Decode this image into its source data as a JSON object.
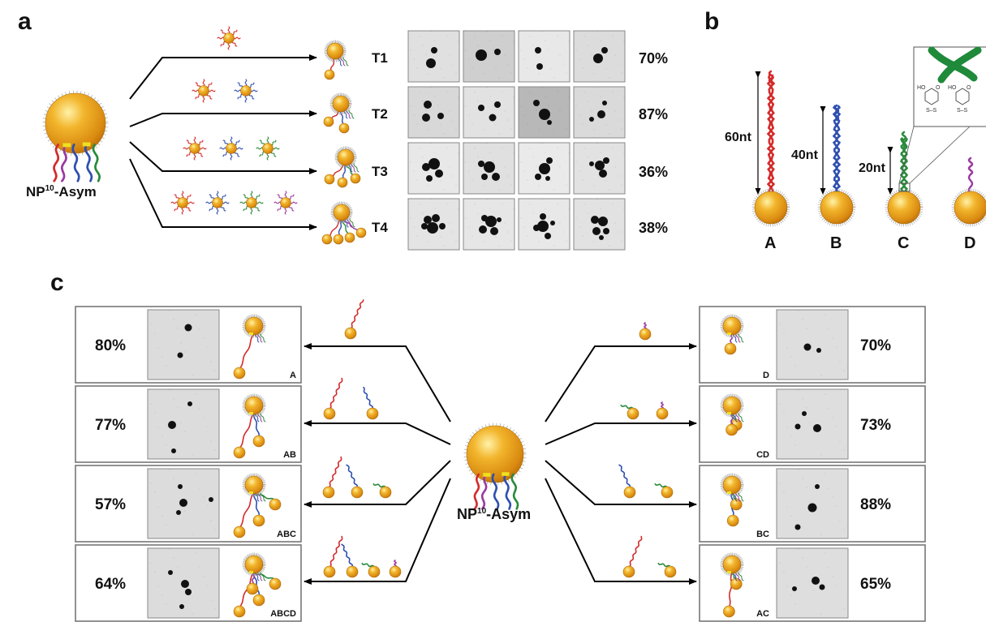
{
  "panel_labels": {
    "a": "a",
    "b": "b",
    "c": "c"
  },
  "panel_a": {
    "np_label": {
      "main": "NP",
      "sup": "10",
      "suffix": "-Asym"
    },
    "rows": [
      {
        "name": "T1",
        "yield": "70%"
      },
      {
        "name": "T2",
        "yield": "87%"
      },
      {
        "name": "T3",
        "yield": "36%"
      },
      {
        "name": "T4",
        "yield": "38%"
      }
    ]
  },
  "panel_b": {
    "particles": [
      {
        "letter": "A",
        "length": "60nt"
      },
      {
        "letter": "B",
        "length": "40nt"
      },
      {
        "letter": "C",
        "length": "20nt"
      },
      {
        "letter": "D",
        "length": ""
      }
    ],
    "inset_text": {
      "ho": "HO",
      "o": "O",
      "ss": "S–S"
    }
  },
  "panel_c": {
    "np_label": {
      "main": "NP",
      "sup": "10",
      "suffix": "-Asym"
    },
    "left": [
      {
        "yield": "80%",
        "code": "A"
      },
      {
        "yield": "77%",
        "code": "AB"
      },
      {
        "yield": "57%",
        "code": "ABC"
      },
      {
        "yield": "64%",
        "code": "ABCD"
      }
    ],
    "right": [
      {
        "yield": "70%",
        "code": "D"
      },
      {
        "yield": "73%",
        "code": "CD"
      },
      {
        "yield": "88%",
        "code": "BC"
      },
      {
        "yield": "65%",
        "code": "AC"
      }
    ]
  },
  "colors": {
    "gold": "#e6a020",
    "strand_a": "#d42a2a",
    "strand_b": "#2f4fb0",
    "strand_c": "#2a8a3c",
    "strand_d": "#9a3aa0",
    "linker": "#f0e020"
  }
}
